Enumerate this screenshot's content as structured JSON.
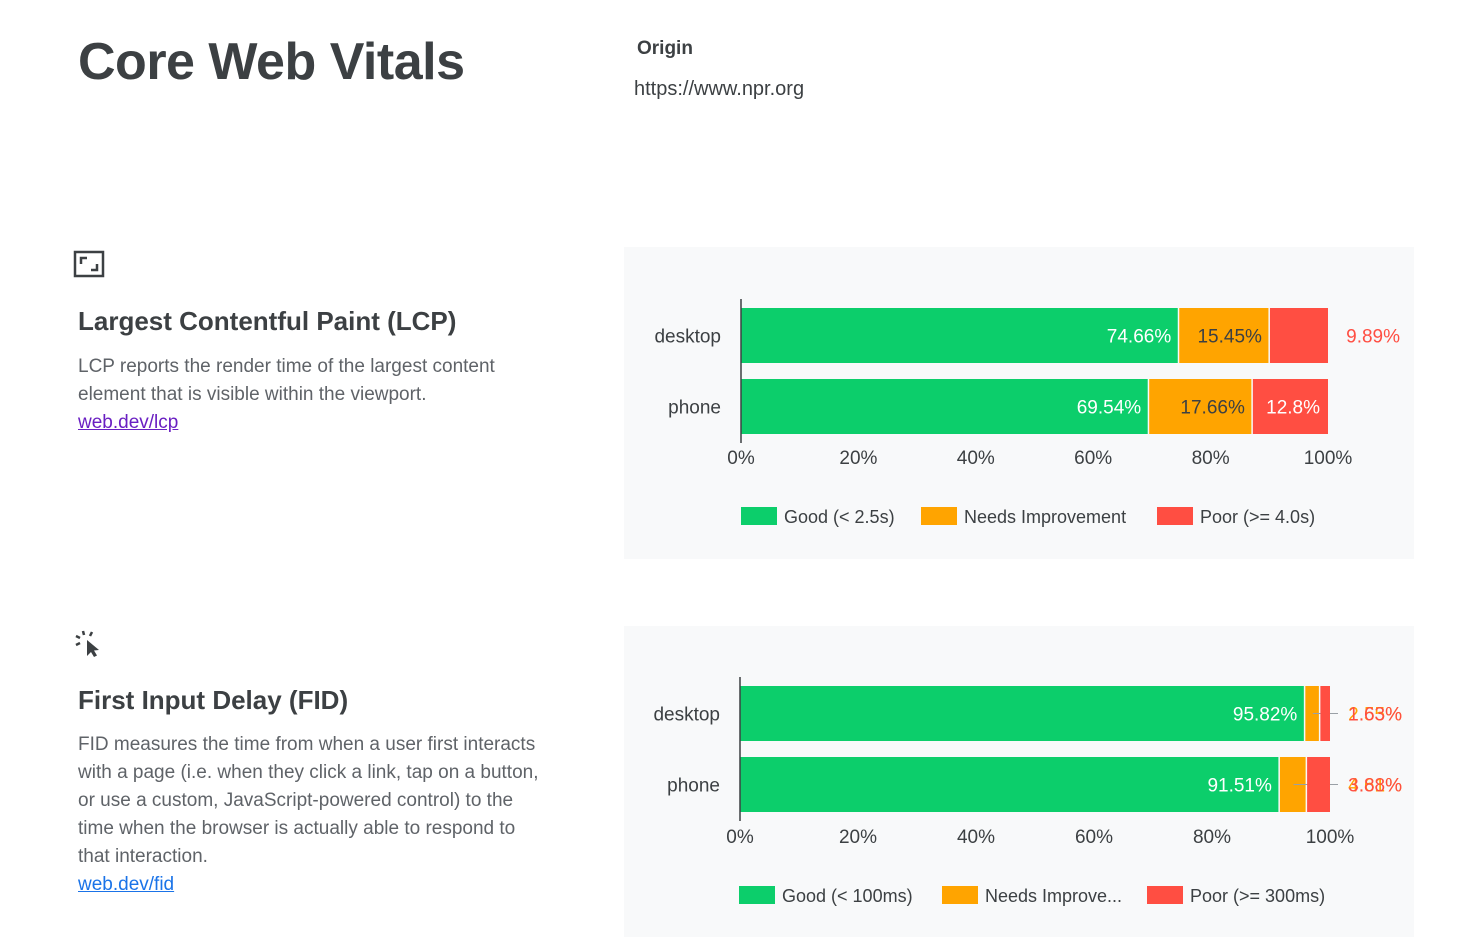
{
  "page": {
    "title": "Core Web Vitals",
    "origin_label": "Origin",
    "origin_url": "https://www.npr.org"
  },
  "colors": {
    "good": "#0cce6b",
    "needs_improvement": "#ffa400",
    "poor": "#ff4e42",
    "link_visited": "#6a1fc2",
    "link": "#1a73e8"
  },
  "metrics": [
    {
      "icon": "expand-frame-icon",
      "heading": "Largest Contentful Paint (LCP)",
      "description": "LCP reports the render time of the largest content element that is visible within the viewport.",
      "link": "web.dev/lcp"
    },
    {
      "icon": "cursor-click-icon",
      "heading": "First Input Delay (FID)",
      "description": "FID measures the time from when a user first interacts with a page (i.e. when they click a link, tap on a button, or use a custom, JavaScript-powered control) to the time when the browser is actually able to respond to that interaction.",
      "link": "web.dev/fid"
    }
  ],
  "chart_data": [
    {
      "type": "bar",
      "orientation": "horizontal",
      "stacked": true,
      "categories": [
        "desktop",
        "phone"
      ],
      "series": [
        {
          "name": "Good (< 2.5s)",
          "values": [
            74.66,
            69.54
          ],
          "labels": [
            "74.66%",
            "69.54%"
          ]
        },
        {
          "name": "Needs Improvement",
          "values": [
            15.45,
            17.66
          ],
          "labels": [
            "15.45%",
            "17.66%"
          ]
        },
        {
          "name": "Poor (>= 4.0s)",
          "values": [
            9.89,
            12.8
          ],
          "labels": [
            "9.89%",
            "12.8%"
          ]
        }
      ],
      "x_ticks": [
        "0%",
        "20%",
        "40%",
        "60%",
        "80%",
        "100%"
      ],
      "xlim": [
        0,
        100
      ],
      "legend": "bottom"
    },
    {
      "type": "bar",
      "orientation": "horizontal",
      "stacked": true,
      "categories": [
        "desktop",
        "phone"
      ],
      "series": [
        {
          "name": "Good (< 100ms)",
          "values": [
            95.82,
            91.51
          ],
          "labels": [
            "95.82%",
            "91.51%"
          ]
        },
        {
          "name": "Needs Improve...",
          "values": [
            2.55,
            4.61
          ],
          "labels": [
            "2.55%",
            "4.61%"
          ]
        },
        {
          "name": "Poor (>= 300ms)",
          "values": [
            1.63,
            3.88
          ],
          "labels": [
            "1.63%",
            "3.88%"
          ]
        }
      ],
      "x_ticks": [
        "0%",
        "20%",
        "40%",
        "60%",
        "80%",
        "100%"
      ],
      "xlim": [
        0,
        100
      ],
      "legend": "bottom"
    }
  ]
}
